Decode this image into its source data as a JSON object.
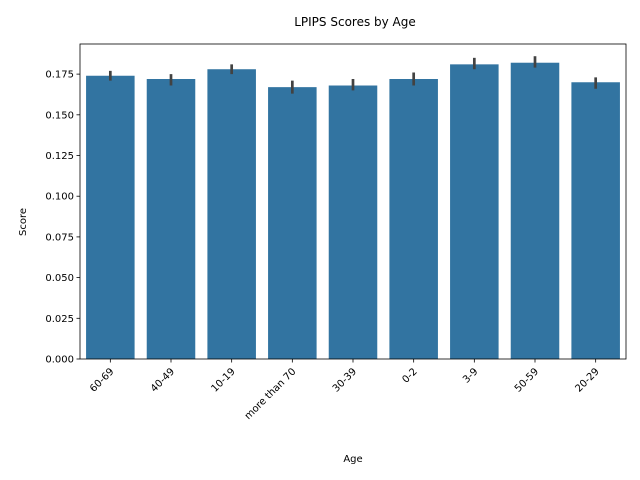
{
  "chart_data": {
    "type": "bar",
    "title": "LPIPS Scores by Age",
    "xlabel": "Age",
    "ylabel": "Score",
    "categories": [
      "60-69",
      "40-49",
      "10-19",
      "more than 70",
      "30-39",
      "0-2",
      "3-9",
      "50-59",
      "20-29"
    ],
    "values": [
      0.174,
      0.172,
      0.178,
      0.167,
      0.168,
      0.172,
      0.181,
      0.182,
      0.17
    ],
    "error_low": [
      0.171,
      0.168,
      0.175,
      0.163,
      0.165,
      0.168,
      0.178,
      0.179,
      0.166
    ],
    "error_high": [
      0.177,
      0.175,
      0.181,
      0.171,
      0.172,
      0.176,
      0.185,
      0.186,
      0.173
    ],
    "ylim": [
      0,
      0.1935
    ],
    "yticks": [
      0.0,
      0.025,
      0.05,
      0.075,
      0.1,
      0.125,
      0.15,
      0.175
    ],
    "ytick_labels": [
      "0.000",
      "0.025",
      "0.050",
      "0.075",
      "0.100",
      "0.125",
      "0.150",
      "0.175"
    ],
    "grid": false,
    "legend": "none",
    "colors": {
      "bar": "#3274a1",
      "error": "#424242",
      "axis": "#000000"
    }
  }
}
